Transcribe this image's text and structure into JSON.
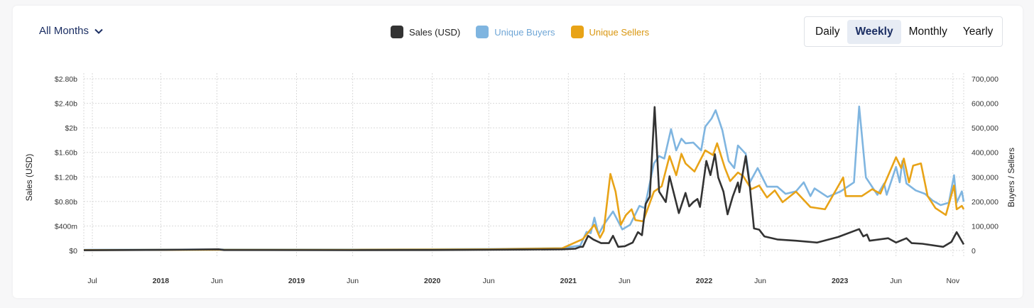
{
  "period_selector": {
    "label": "All Months",
    "icon": "chevron-down-icon"
  },
  "legend": [
    {
      "label": "Sales (USD)",
      "color": "#333333"
    },
    {
      "label": "Unique Buyers",
      "color": "#7fb5e0"
    },
    {
      "label": "Unique Sellers",
      "color": "#e8a317"
    }
  ],
  "interval_toggle": {
    "options": [
      "Daily",
      "Weekly",
      "Monthly",
      "Yearly"
    ],
    "selected": "Weekly",
    "active_color": "#1b2e63"
  },
  "chart_data": {
    "type": "line",
    "x_range": [
      "2017-06-08",
      "2023-11-30"
    ],
    "x_ticks": [
      {
        "date": "2017-07-01",
        "label": "Jul",
        "bold": false
      },
      {
        "date": "2018-01-01",
        "label": "2018",
        "bold": true
      },
      {
        "date": "2018-06-01",
        "label": "Jun",
        "bold": false
      },
      {
        "date": "2019-01-01",
        "label": "2019",
        "bold": true
      },
      {
        "date": "2019-06-01",
        "label": "Jun",
        "bold": false
      },
      {
        "date": "2020-01-01",
        "label": "2020",
        "bold": true
      },
      {
        "date": "2020-06-01",
        "label": "Jun",
        "bold": false
      },
      {
        "date": "2021-01-01",
        "label": "2021",
        "bold": true
      },
      {
        "date": "2021-06-01",
        "label": "Jun",
        "bold": false
      },
      {
        "date": "2022-01-01",
        "label": "2022",
        "bold": true
      },
      {
        "date": "2022-06-01",
        "label": "Jun",
        "bold": false
      },
      {
        "date": "2023-01-01",
        "label": "2023",
        "bold": true
      },
      {
        "date": "2023-06-01",
        "label": "Jun",
        "bold": false
      },
      {
        "date": "2023-11-01",
        "label": "Nov",
        "bold": false
      }
    ],
    "y_left": {
      "label": "Sales (USD)",
      "unit": "billion USD",
      "range": [
        0,
        2.8
      ],
      "ticks": [
        {
          "v": 0,
          "label": "$0"
        },
        {
          "v": 0.4,
          "label": "$400m"
        },
        {
          "v": 0.8,
          "label": "$0.80b"
        },
        {
          "v": 1.2,
          "label": "$1.20b"
        },
        {
          "v": 1.6,
          "label": "$1.60b"
        },
        {
          "v": 2.0,
          "label": "$2b"
        },
        {
          "v": 2.4,
          "label": "$2.40b"
        },
        {
          "v": 2.8,
          "label": "$2.80b"
        }
      ]
    },
    "y_right": {
      "label": "Buyers / Sellers",
      "range": [
        0,
        700000
      ],
      "ticks": [
        {
          "v": 0,
          "label": "0"
        },
        {
          "v": 100000,
          "label": "100,000"
        },
        {
          "v": 200000,
          "label": "200,000"
        },
        {
          "v": 300000,
          "label": "300,000"
        },
        {
          "v": 400000,
          "label": "400,000"
        },
        {
          "v": 500000,
          "label": "500,000"
        },
        {
          "v": 600000,
          "label": "600,000"
        },
        {
          "v": 700000,
          "label": "700,000"
        }
      ]
    },
    "grid": true,
    "legend_position": "top",
    "series": [
      {
        "name": "Sales (USD)",
        "axis": "left",
        "color": "#333333",
        "points": [
          [
            "2017-06-08",
            0.005
          ],
          [
            "2018-01-15",
            0.01
          ],
          [
            "2018-06-05",
            0.02
          ],
          [
            "2018-06-20",
            0.008
          ],
          [
            "2019-06-01",
            0.006
          ],
          [
            "2020-01-01",
            0.008
          ],
          [
            "2020-09-01",
            0.015
          ],
          [
            "2020-12-15",
            0.02
          ],
          [
            "2021-01-20",
            0.03
          ],
          [
            "2021-02-02",
            0.06
          ],
          [
            "2021-02-09",
            0.06
          ],
          [
            "2021-02-23",
            0.24
          ],
          [
            "2021-03-09",
            0.18
          ],
          [
            "2021-03-30",
            0.12
          ],
          [
            "2021-04-20",
            0.12
          ],
          [
            "2021-05-01",
            0.24
          ],
          [
            "2021-05-15",
            0.06
          ],
          [
            "2021-06-02",
            0.07
          ],
          [
            "2021-06-23",
            0.13
          ],
          [
            "2021-07-07",
            0.3
          ],
          [
            "2021-07-18",
            0.25
          ],
          [
            "2021-07-28",
            0.76
          ],
          [
            "2021-08-08",
            0.88
          ],
          [
            "2021-08-21",
            2.34
          ],
          [
            "2021-09-02",
            0.96
          ],
          [
            "2021-09-20",
            0.79
          ],
          [
            "2021-09-30",
            1.21
          ],
          [
            "2021-10-25",
            0.61
          ],
          [
            "2021-11-12",
            0.94
          ],
          [
            "2021-11-22",
            0.72
          ],
          [
            "2021-12-03",
            0.79
          ],
          [
            "2021-12-14",
            0.84
          ],
          [
            "2021-12-21",
            0.71
          ],
          [
            "2022-01-07",
            1.46
          ],
          [
            "2022-01-18",
            1.23
          ],
          [
            "2022-01-30",
            1.57
          ],
          [
            "2022-02-08",
            1.19
          ],
          [
            "2022-02-22",
            0.96
          ],
          [
            "2022-03-05",
            0.59
          ],
          [
            "2022-03-19",
            0.88
          ],
          [
            "2022-04-02",
            1.11
          ],
          [
            "2022-04-06",
            0.95
          ],
          [
            "2022-04-23",
            1.54
          ],
          [
            "2022-05-04",
            1.04
          ],
          [
            "2022-05-15",
            0.36
          ],
          [
            "2022-05-29",
            0.34
          ],
          [
            "2022-06-12",
            0.23
          ],
          [
            "2022-07-17",
            0.18
          ],
          [
            "2022-09-05",
            0.16
          ],
          [
            "2022-11-01",
            0.13
          ],
          [
            "2022-12-27",
            0.22
          ],
          [
            "2023-02-22",
            0.35
          ],
          [
            "2023-03-05",
            0.23
          ],
          [
            "2023-03-15",
            0.26
          ],
          [
            "2023-03-22",
            0.16
          ],
          [
            "2023-05-11",
            0.2
          ],
          [
            "2023-06-01",
            0.13
          ],
          [
            "2023-06-29",
            0.2
          ],
          [
            "2023-07-13",
            0.12
          ],
          [
            "2023-08-11",
            0.11
          ],
          [
            "2023-10-06",
            0.06
          ],
          [
            "2023-10-28",
            0.14
          ],
          [
            "2023-11-11",
            0.3
          ],
          [
            "2023-11-30",
            0.1
          ]
        ]
      },
      {
        "name": "Unique Buyers",
        "axis": "right",
        "color": "#7fb5e0",
        "points": [
          [
            "2017-06-08",
            3000
          ],
          [
            "2018-06-01",
            4000
          ],
          [
            "2019-06-01",
            4000
          ],
          [
            "2020-06-01",
            6000
          ],
          [
            "2020-12-15",
            10000
          ],
          [
            "2021-02-02",
            20000
          ],
          [
            "2021-02-19",
            76000
          ],
          [
            "2021-03-02",
            71000
          ],
          [
            "2021-03-12",
            134000
          ],
          [
            "2021-03-23",
            66000
          ],
          [
            "2021-04-06",
            105000
          ],
          [
            "2021-05-01",
            159000
          ],
          [
            "2021-05-26",
            86000
          ],
          [
            "2021-06-16",
            105000
          ],
          [
            "2021-07-11",
            182000
          ],
          [
            "2021-07-25",
            173000
          ],
          [
            "2021-08-19",
            355000
          ],
          [
            "2021-09-02",
            385000
          ],
          [
            "2021-09-16",
            375000
          ],
          [
            "2021-10-04",
            495000
          ],
          [
            "2021-10-18",
            408000
          ],
          [
            "2021-11-01",
            456000
          ],
          [
            "2021-11-12",
            437000
          ],
          [
            "2021-12-03",
            440000
          ],
          [
            "2021-12-24",
            408000
          ],
          [
            "2022-01-04",
            505000
          ],
          [
            "2022-01-21",
            538000
          ],
          [
            "2022-02-01",
            572000
          ],
          [
            "2022-02-19",
            491000
          ],
          [
            "2022-03-08",
            365000
          ],
          [
            "2022-03-23",
            336000
          ],
          [
            "2022-04-02",
            428000
          ],
          [
            "2022-04-23",
            394000
          ],
          [
            "2022-05-04",
            278000
          ],
          [
            "2022-05-25",
            336000
          ],
          [
            "2022-06-19",
            260000
          ],
          [
            "2022-07-17",
            260000
          ],
          [
            "2022-08-08",
            231000
          ],
          [
            "2022-09-05",
            241000
          ],
          [
            "2022-09-26",
            278000
          ],
          [
            "2022-10-14",
            222000
          ],
          [
            "2022-10-25",
            253000
          ],
          [
            "2022-11-29",
            218000
          ],
          [
            "2023-01-03",
            241000
          ],
          [
            "2023-02-08",
            278000
          ],
          [
            "2023-02-22",
            587000
          ],
          [
            "2023-03-12",
            298000
          ],
          [
            "2023-04-12",
            227000
          ],
          [
            "2023-04-30",
            273000
          ],
          [
            "2023-05-07",
            227000
          ],
          [
            "2023-06-01",
            341000
          ],
          [
            "2023-06-11",
            278000
          ],
          [
            "2023-06-18",
            365000
          ],
          [
            "2023-06-29",
            273000
          ],
          [
            "2023-07-24",
            245000
          ],
          [
            "2023-08-18",
            231000
          ],
          [
            "2023-09-08",
            203000
          ],
          [
            "2023-09-29",
            185000
          ],
          [
            "2023-10-21",
            195000
          ],
          [
            "2023-11-04",
            307000
          ],
          [
            "2023-11-11",
            195000
          ],
          [
            "2023-11-25",
            241000
          ],
          [
            "2023-11-30",
            199000
          ]
        ]
      },
      {
        "name": "Unique Sellers",
        "axis": "right",
        "color": "#e8a317",
        "points": [
          [
            "2017-06-08",
            2000
          ],
          [
            "2018-06-01",
            3000
          ],
          [
            "2019-06-01",
            3000
          ],
          [
            "2020-06-01",
            5000
          ],
          [
            "2020-12-15",
            9000
          ],
          [
            "2021-02-09",
            47000
          ],
          [
            "2021-03-12",
            105000
          ],
          [
            "2021-03-27",
            52000
          ],
          [
            "2021-04-06",
            80000
          ],
          [
            "2021-04-24",
            312000
          ],
          [
            "2021-05-08",
            240000
          ],
          [
            "2021-05-22",
            105000
          ],
          [
            "2021-06-05",
            145000
          ],
          [
            "2021-06-20",
            168000
          ],
          [
            "2021-06-30",
            124000
          ],
          [
            "2021-07-21",
            119000
          ],
          [
            "2021-08-19",
            240000
          ],
          [
            "2021-09-09",
            262000
          ],
          [
            "2021-09-30",
            385000
          ],
          [
            "2021-10-18",
            307000
          ],
          [
            "2021-11-01",
            394000
          ],
          [
            "2021-11-12",
            355000
          ],
          [
            "2021-12-06",
            322000
          ],
          [
            "2022-01-04",
            408000
          ],
          [
            "2022-01-25",
            389000
          ],
          [
            "2022-02-05",
            437000
          ],
          [
            "2022-02-26",
            336000
          ],
          [
            "2022-03-12",
            283000
          ],
          [
            "2022-04-02",
            318000
          ],
          [
            "2022-04-16",
            303000
          ],
          [
            "2022-05-08",
            250000
          ],
          [
            "2022-05-29",
            265000
          ],
          [
            "2022-06-19",
            216000
          ],
          [
            "2022-07-10",
            245000
          ],
          [
            "2022-07-31",
            197000
          ],
          [
            "2022-09-05",
            240000
          ],
          [
            "2022-10-14",
            177000
          ],
          [
            "2022-11-22",
            168000
          ],
          [
            "2023-01-10",
            298000
          ],
          [
            "2023-01-17",
            222000
          ],
          [
            "2023-03-01",
            222000
          ],
          [
            "2023-03-29",
            250000
          ],
          [
            "2023-04-20",
            232000
          ],
          [
            "2023-06-01",
            380000
          ],
          [
            "2023-06-15",
            336000
          ],
          [
            "2023-06-22",
            375000
          ],
          [
            "2023-07-06",
            278000
          ],
          [
            "2023-07-17",
            346000
          ],
          [
            "2023-08-07",
            355000
          ],
          [
            "2023-08-25",
            222000
          ],
          [
            "2023-09-15",
            173000
          ],
          [
            "2023-10-13",
            145000
          ],
          [
            "2023-11-04",
            265000
          ],
          [
            "2023-11-11",
            168000
          ],
          [
            "2023-11-25",
            182000
          ],
          [
            "2023-11-30",
            168000
          ]
        ]
      }
    ]
  }
}
